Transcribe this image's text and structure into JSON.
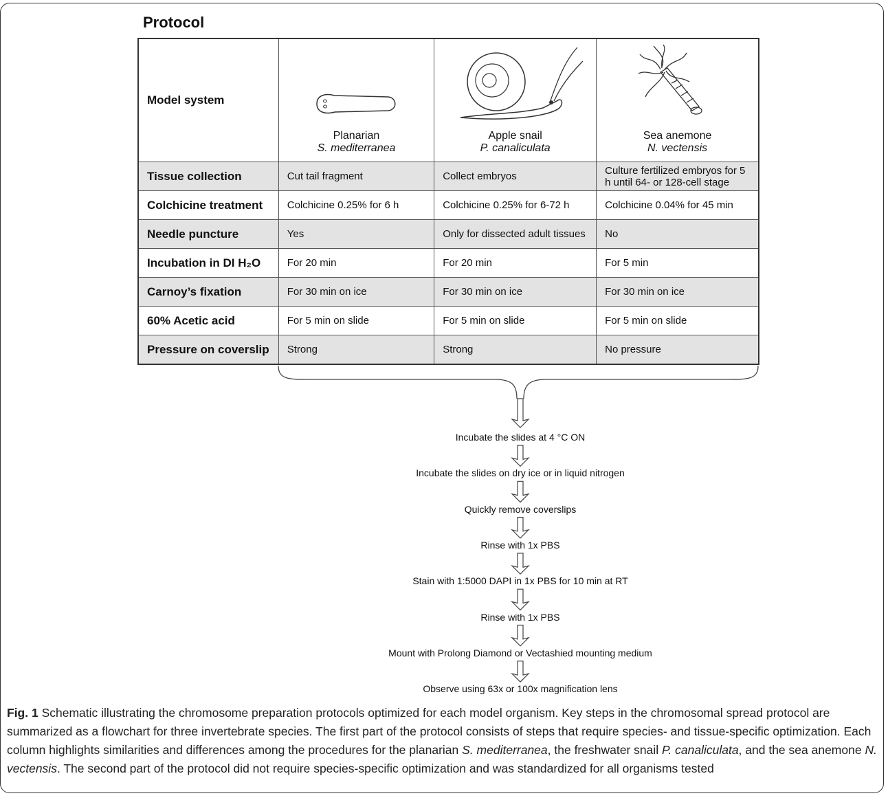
{
  "title": "Protocol",
  "table": {
    "header": {
      "label": "Model system",
      "columns": [
        {
          "common": "Planarian",
          "species": "S. mediterranea"
        },
        {
          "common": "Apple snail",
          "species": "P. canaliculata"
        },
        {
          "common": "Sea anemone",
          "species": "N. vectensis"
        }
      ]
    },
    "rows": [
      [
        "Tissue collection",
        "Cut tail fragment",
        "Collect embryos",
        "Culture fertilized embryos for 5 h until 64- or 128-cell stage"
      ],
      [
        "Colchicine treatment",
        "Colchicine 0.25% for 6 h",
        "Colchicine 0.25% for 6-72 h",
        "Colchicine 0.04% for 45 min"
      ],
      [
        "Needle puncture",
        "Yes",
        "Only for dissected adult tissues",
        "No"
      ],
      [
        "Incubation in DI H₂O",
        "For 20 min",
        "For 20 min",
        "For 5 min"
      ],
      [
        "Carnoy’s fixation",
        "For 30 min on ice",
        "For 30 min on ice",
        "For 30 min on ice"
      ],
      [
        "60% Acetic acid",
        "For 5 min on slide",
        "For 5 min on slide",
        "For 5 min on slide"
      ],
      [
        "Pressure on coverslip",
        "Strong",
        "Strong",
        "No pressure"
      ]
    ]
  },
  "flow": [
    "Incubate the slides at 4 °C ON",
    "Incubate the slides on dry ice or in liquid nitrogen",
    "Quickly remove coverslips",
    "Rinse with 1x PBS",
    "Stain with 1:5000 DAPI in 1x PBS for 10 min at RT",
    "Rinse with 1x PBS",
    "Mount with Prolong Diamond or Vectashied mounting medium",
    "Observe using 63x or 100x magnification lens"
  ],
  "caption": {
    "label": "Fig. 1",
    "segments": [
      {
        "text": " Schematic illustrating the chromosome preparation protocols optimized for each model organism. Key steps in the chromosomal spread protocol are summarized as a flowchart for three invertebrate species. The first part of the protocol consists of steps that require species- and tissue-specific optimization. Each column highlights similarities and differences among the procedures for the planarian "
      },
      {
        "text": "S. mediterranea",
        "italic": true
      },
      {
        "text": ", the freshwater snail "
      },
      {
        "text": "P. canaliculata",
        "italic": true
      },
      {
        "text": ", and the sea anemone "
      },
      {
        "text": "N. vectensis",
        "italic": true
      },
      {
        "text": ". The second part of the protocol did not require species-specific optimization and was standardized for all organisms tested"
      }
    ]
  }
}
